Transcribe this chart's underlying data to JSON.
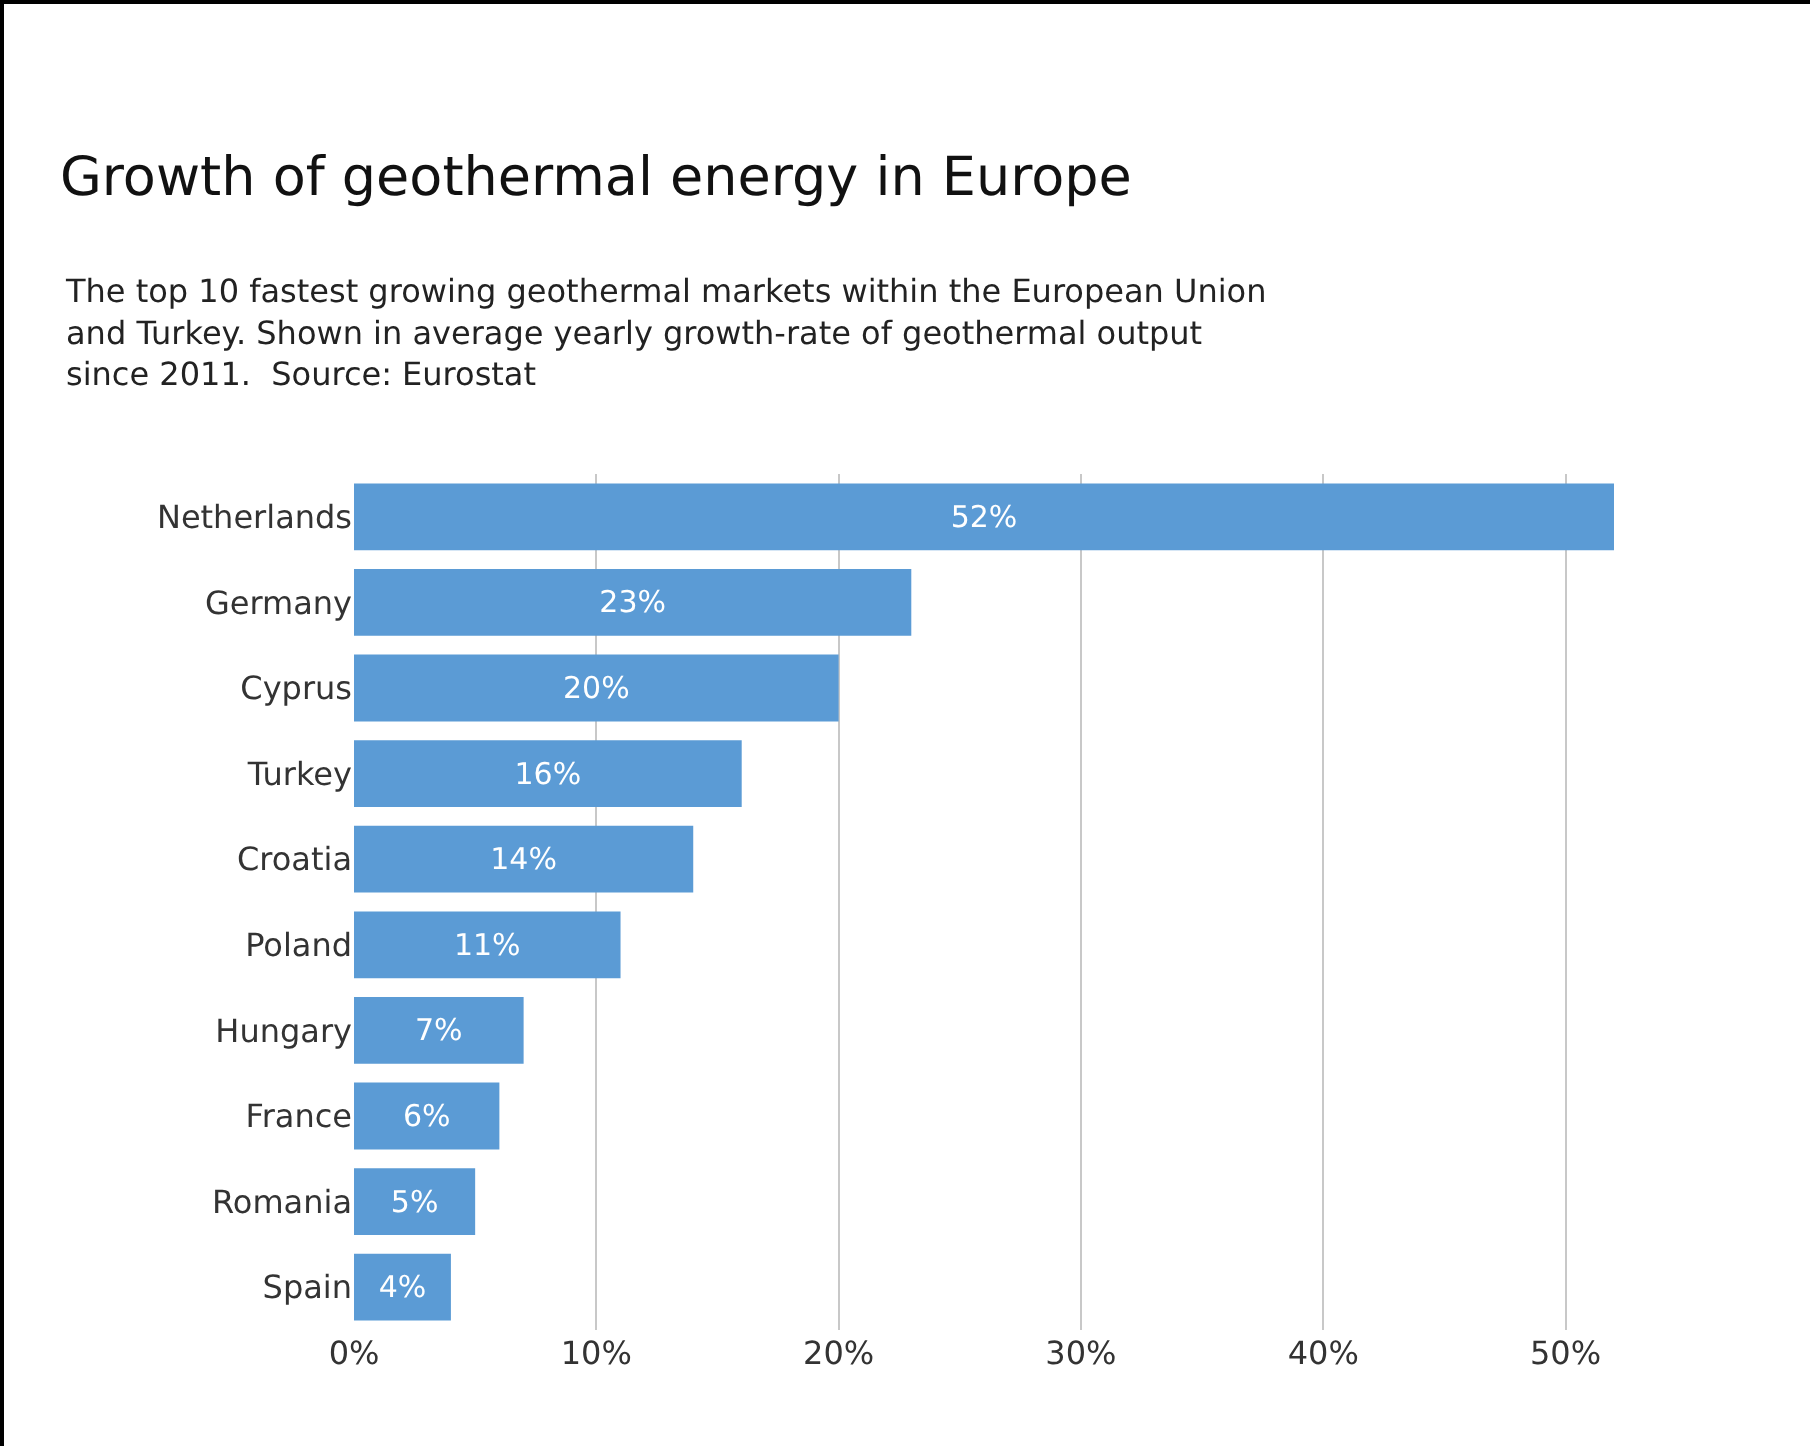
{
  "chart_data": {
    "type": "bar",
    "orientation": "horizontal",
    "title": "Growth of geothermal energy in Europe",
    "subtitle": "The top 10 fastest growing geothermal markets within the European Union and Turkey. Shown in average yearly growth-rate of geothermal output since 2011.  Source: Eurostat",
    "categories": [
      "Netherlands",
      "Germany",
      "Cyprus",
      "Turkey",
      "Croatia",
      "Poland",
      "Hungary",
      "France",
      "Romania",
      "Spain"
    ],
    "values": [
      52,
      23,
      20,
      16,
      14,
      11,
      7,
      6,
      5,
      4
    ],
    "value_labels": [
      "52%",
      "23%",
      "20%",
      "16%",
      "14%",
      "11%",
      "7%",
      "6%",
      "5%",
      "4%"
    ],
    "color": "#5b9bd5",
    "xlim": [
      0,
      52
    ],
    "xticks": [
      {
        "value": 0,
        "label": "0%"
      },
      {
        "value": 10,
        "label": "10%"
      },
      {
        "value": 20,
        "label": "20%"
      },
      {
        "value": 30,
        "label": "30%"
      },
      {
        "value": 40,
        "label": "40%"
      },
      {
        "value": 50,
        "label": "50%"
      }
    ],
    "grid": "x"
  }
}
